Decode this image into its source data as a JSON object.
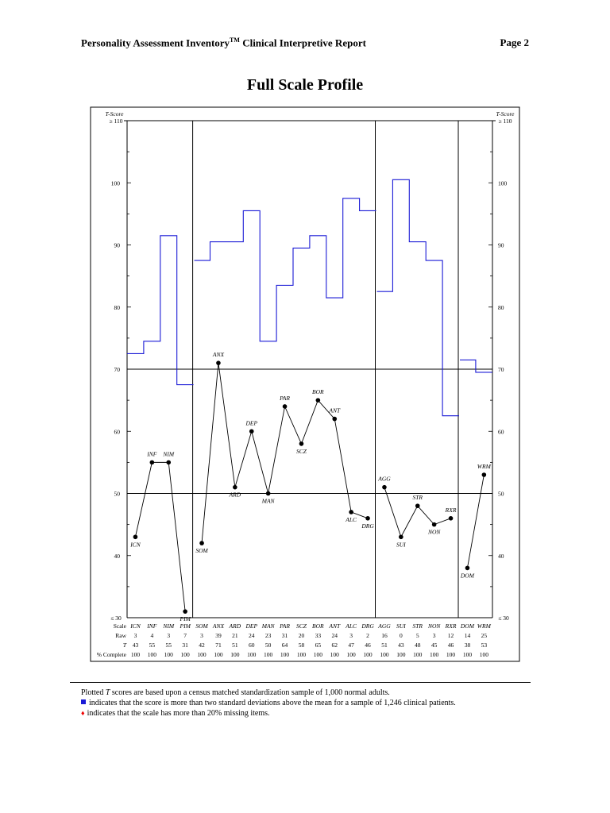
{
  "header": {
    "title": "Personality Assessment Inventory",
    "trademark": "TM",
    "title_suffix": " Clinical Interpretive Report",
    "page": "Page 2"
  },
  "chart_title": "Full Scale Profile",
  "chart_data": {
    "type": "line",
    "title": "Full Scale Profile",
    "ylabel": "T-Score",
    "y_top_label": "≥ 110",
    "y_bottom_label": "≤ 30",
    "ylim": [
      30,
      110
    ],
    "yticks": [
      40,
      50,
      60,
      70,
      80,
      90,
      100
    ],
    "reference_lines": [
      50,
      70
    ],
    "row_labels": {
      "scale": "Scale",
      "raw": "Raw",
      "t": "T",
      "complete": "% Complete"
    },
    "scales": [
      "ICN",
      "INF",
      "NIM",
      "PIM",
      "SOM",
      "ANX",
      "ARD",
      "DEP",
      "MAN",
      "PAR",
      "SCZ",
      "BOR",
      "ANT",
      "ALC",
      "DRG",
      "AGG",
      "SUI",
      "STR",
      "NON",
      "RXR",
      "DOM",
      "WRM"
    ],
    "raw": [
      "3",
      "4",
      "3",
      "7",
      "3",
      "39",
      "21",
      "24",
      "23",
      "31",
      "20",
      "33",
      "24",
      "3",
      "2",
      "16",
      "0",
      "5",
      "3",
      "12",
      "14",
      "25"
    ],
    "t": [
      43,
      55,
      55,
      31,
      42,
      71,
      51,
      60,
      50,
      64,
      58,
      65,
      62,
      47,
      46,
      51,
      43,
      48,
      45,
      46,
      38,
      53
    ],
    "complete": [
      "100",
      "100",
      "100",
      "100",
      "100",
      "100",
      "100",
      "100",
      "100",
      "100",
      "100",
      "100",
      "100",
      "100",
      "100",
      "100",
      "100",
      "100",
      "100",
      "100",
      "100",
      "100"
    ],
    "groups": [
      [
        0,
        3
      ],
      [
        4,
        14
      ],
      [
        15,
        19
      ],
      [
        20,
        21
      ]
    ],
    "point_labels": [
      "ICN",
      "INF",
      "NIM",
      "PIM",
      "SOM",
      "ANX",
      "ARD",
      "DEP",
      "MAN",
      "PAR",
      "SCZ",
      "BOR",
      "ANT",
      "ALC",
      "DRG",
      "AGG",
      "SUI",
      "STR",
      "NON",
      "RXR",
      "DOM",
      "WRM"
    ],
    "clinical_skyline": {
      "name": "",
      "color": "#1a1ad6",
      "values": [
        72.5,
        74.5,
        91.5,
        67.5,
        87.5,
        90.5,
        90.5,
        95.5,
        74.5,
        83.5,
        89.5,
        91.5,
        81.5,
        97.5,
        95.5,
        82.5,
        100.5,
        90.5,
        87.5,
        62.5,
        71.5,
        69.5
      ]
    }
  },
  "notes": {
    "line1_pre": "Plotted ",
    "line1_em": "T",
    "line1_post": " scores are based upon a census matched standardization sample of 1,000 normal adults.",
    "line2": "indicates that the score is more than two standard deviations above the mean for a sample of 1,246 clinical patients.",
    "line3": "indicates that the scale has more than 20% missing items.",
    "line2_marker_color": "#1a1ad6",
    "line3_marker_color": "#ee0000"
  }
}
